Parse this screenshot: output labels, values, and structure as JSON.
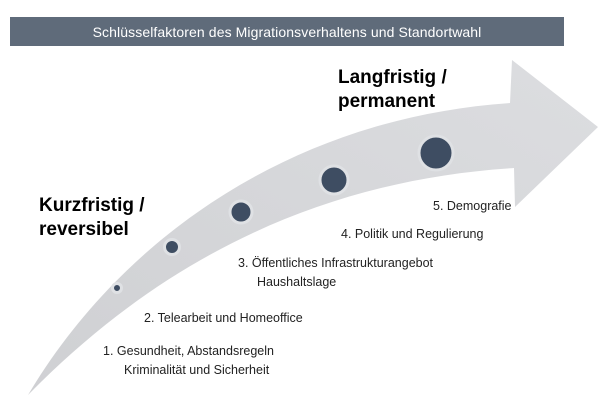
{
  "header": {
    "title": "Schlüsselfaktoren des Migrationsverhaltens und Standortwahl"
  },
  "poles": {
    "long_term": [
      "Langfristig /",
      "permanent"
    ],
    "short_term": [
      "Kurzfristig /",
      "reversibel"
    ]
  },
  "factors": [
    {
      "lines": [
        "1. Gesundheit, Abstandsregeln",
        "Kriminalität und Sicherheit"
      ]
    },
    {
      "lines": [
        "2. Telearbeit und Homeoffice"
      ]
    },
    {
      "lines": [
        "3. Öffentliches Infrastrukturangebot",
        "Haushaltslage"
      ]
    },
    {
      "lines": [
        "4. Politik und Regulierung"
      ]
    },
    {
      "lines": [
        "5. Demografie"
      ]
    }
  ],
  "colors": {
    "title_bar": "#5f6b7a",
    "arrow_light": "#d9dadc",
    "arrow_dark": "#c9cacd",
    "marker_fill": "#3e4d62",
    "marker_ring": "#dfe1e4"
  }
}
